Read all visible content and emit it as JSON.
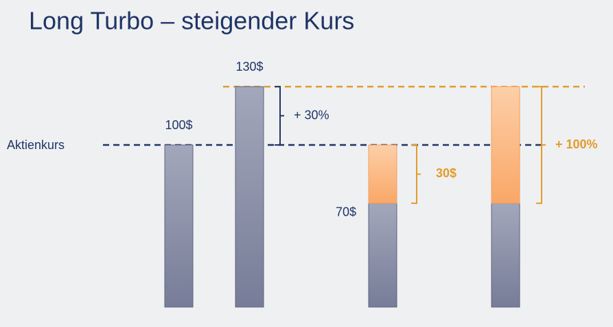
{
  "title": "Long Turbo – steigender Kurs",
  "reference_label": "Aktienkurs",
  "reference_value": 100,
  "stock_bars": [
    {
      "label": "100$",
      "value": 100
    },
    {
      "label": "130$",
      "value": 130,
      "gain_label": "+ 30%"
    }
  ],
  "turbo_bars": [
    {
      "base": 70,
      "base_label": "70$",
      "gain": 30,
      "gain_label": "30$"
    },
    {
      "base": 70,
      "gain": 60,
      "gain_label": "+ 100%"
    }
  ]
}
